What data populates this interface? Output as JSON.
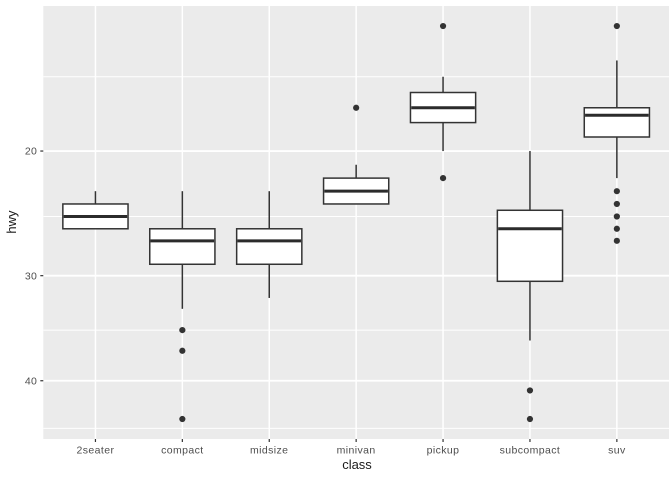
{
  "chart_data": {
    "type": "boxplot",
    "title": "",
    "xlabel": "class",
    "ylabel": "hwy",
    "categories": [
      "2seater",
      "compact",
      "midsize",
      "minivan",
      "pickup",
      "subcompact",
      "suv"
    ],
    "y_axis": {
      "reversed": true,
      "transform": "sqrt",
      "major_ticks": [
        20,
        30,
        40
      ],
      "minor_ticks": [
        15,
        25,
        35,
        45
      ],
      "range_top_value": 11,
      "range_bottom_value": 46,
      "grid": true
    },
    "series": [
      {
        "category": "2seater",
        "whisker_low": 23,
        "q1": 24,
        "median": 25,
        "q3": 26,
        "whisker_high": 26,
        "outliers": []
      },
      {
        "category": "compact",
        "whisker_low": 23,
        "q1": 26,
        "median": 27,
        "q3": 29,
        "whisker_high": 33,
        "outliers": [
          35,
          37,
          44
        ]
      },
      {
        "category": "midsize",
        "whisker_low": 23,
        "q1": 26,
        "median": 27,
        "q3": 29,
        "whisker_high": 32,
        "outliers": []
      },
      {
        "category": "minivan",
        "whisker_low": 21,
        "q1": 22,
        "median": 23,
        "q3": 24,
        "whisker_high": 24,
        "outliers": [
          17
        ]
      },
      {
        "category": "pickup",
        "whisker_low": 15,
        "q1": 16,
        "median": 17,
        "q3": 18,
        "whisker_high": 20,
        "outliers": [
          12,
          22
        ]
      },
      {
        "category": "subcompact",
        "whisker_low": 20,
        "q1": 24.5,
        "median": 26,
        "q3": 30.5,
        "whisker_high": 36,
        "outliers": [
          41,
          44
        ]
      },
      {
        "category": "suv",
        "whisker_low": 14,
        "q1": 17,
        "median": 17.5,
        "q3": 19,
        "whisker_high": 22,
        "outliers": [
          12,
          23,
          24,
          25,
          26,
          27
        ]
      }
    ],
    "legend": null,
    "colors": {
      "figure_bg": "#FFFFFF",
      "panel_bg": "#EBEBEB",
      "grid_major": "#FFFFFF",
      "grid_minor": "#FFFFFF",
      "box_fill": "#FFFFFF",
      "box_stroke": "#333333",
      "median_stroke": "#2b2b2b",
      "outlier_fill": "#333333",
      "tick_mark": "#333333",
      "axis_text": "#4D4D4D",
      "axis_title_text": "#1A1A1A"
    }
  }
}
